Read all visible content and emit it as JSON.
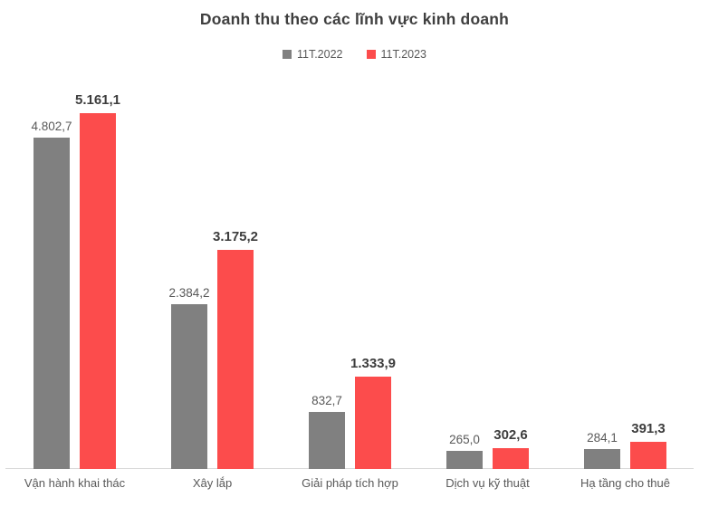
{
  "title": "Doanh thu theo các lĩnh vực kinh doanh",
  "legend": [
    {
      "label": "11T.2022",
      "color": "#808080"
    },
    {
      "label": "11T.2023",
      "color": "#FC4C4C"
    }
  ],
  "chart_data": {
    "type": "bar",
    "title": "Doanh thu theo các lĩnh vực kinh doanh",
    "xlabel": "",
    "ylabel": "",
    "grid": false,
    "legend_position": "top",
    "value_labels": true,
    "ylim": [
      0,
      5400
    ],
    "categories": [
      "Vận hành khai thác",
      "Xây lắp",
      "Giải pháp tích hợp",
      "Dịch vụ kỹ thuật",
      "Hạ tầng cho thuê"
    ],
    "series": [
      {
        "name": "11T.2022",
        "color": "#808080",
        "values": [
          4802.7,
          2384.2,
          832.7,
          265.0,
          284.1
        ],
        "labels": [
          "4.802,7",
          "2.384,2",
          "832,7",
          "265,0",
          "284,1"
        ]
      },
      {
        "name": "11T.2023",
        "color": "#FC4C4C",
        "values": [
          5161.1,
          3175.2,
          1333.9,
          302.6,
          391.3
        ],
        "labels": [
          "5.161,1",
          "3.175,2",
          "1.333,9",
          "302,6",
          "391,3"
        ]
      }
    ]
  }
}
